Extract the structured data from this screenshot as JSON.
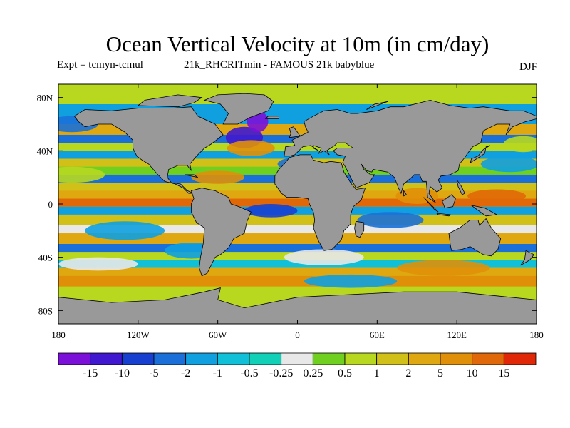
{
  "title": "Ocean Vertical Velocity at 10m (in cm/day)",
  "experiment_label": "Expt = tcmyn-tcmul",
  "run_label": "21k_RHCRITmin - FAMOUS 21k babyblue",
  "season": "DJF",
  "map": {
    "projection": "cylindrical equidistant",
    "land_color": "#999999",
    "coastline_color": "#000000",
    "lat_ticks": [
      "80N",
      "40N",
      "0",
      "40S",
      "80S"
    ],
    "lon_ticks": [
      "180",
      "120W",
      "60W",
      "0",
      "60E",
      "120E",
      "180"
    ]
  },
  "colorbar": {
    "colors": [
      "#7b10d8",
      "#4018d0",
      "#1840d0",
      "#1a70d8",
      "#10a0e0",
      "#10c0d8",
      "#10d0b8",
      "#e8e8e8",
      "#70d020",
      "#b8d820",
      "#d0c018",
      "#e0a810",
      "#e09008",
      "#e06808",
      "#e02808"
    ],
    "labels": [
      "-15",
      "-10",
      "-5",
      "-2",
      "-1",
      "-0.5",
      "-0.25",
      "0.25",
      "0.5",
      "1",
      "2",
      "5",
      "10",
      "15"
    ]
  }
}
